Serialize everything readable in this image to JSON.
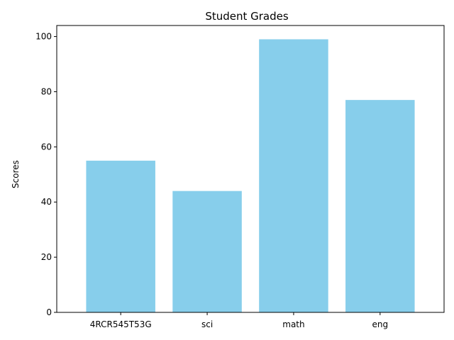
{
  "chart_data": {
    "type": "bar",
    "title": "Student Grades",
    "xlabel": "",
    "ylabel": "Scores",
    "categories": [
      "4RCR545T53G",
      "sci",
      "math",
      "eng"
    ],
    "values": [
      55,
      44,
      99,
      77
    ],
    "ylim": [
      0,
      104
    ],
    "yticks": [
      0,
      20,
      40,
      60,
      80,
      100
    ],
    "grid": false,
    "legend": "none",
    "bar_color": "#87CEEB"
  }
}
